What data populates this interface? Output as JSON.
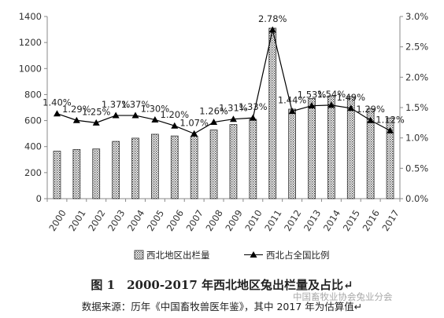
{
  "chart_data": {
    "type": "bar+line",
    "categories": [
      "2000",
      "2001",
      "2002",
      "2003",
      "2004",
      "2005",
      "2006",
      "2007",
      "2008",
      "2009",
      "2010",
      "2011",
      "2012",
      "2013",
      "2014",
      "2015",
      "2016",
      "2017"
    ],
    "series": [
      {
        "name": "西北地区出栏量",
        "kind": "bar",
        "axis": "left",
        "values": [
          365,
          378,
          382,
          440,
          465,
          495,
          482,
          480,
          528,
          570,
          610,
          1310,
          688,
          770,
          790,
          785,
          690,
          620
        ]
      },
      {
        "name": "西北占全国比例",
        "kind": "line",
        "axis": "right",
        "values": [
          1.4,
          1.29,
          1.25,
          1.37,
          1.37,
          1.3,
          1.2,
          1.07,
          1.26,
          1.31,
          1.33,
          2.78,
          1.44,
          1.53,
          1.54,
          1.49,
          1.29,
          1.12
        ],
        "labels": [
          "1.40%",
          "1.29%",
          "1.25%",
          "1.37%",
          "1.37%",
          "1.30%",
          "1.20%",
          "1.07%",
          "1.26%",
          "1.31%",
          "1.33%",
          "2.78%",
          "1.44%",
          "1.53%",
          "1.54%",
          "1.49%",
          "1.29%",
          "1.12%"
        ]
      }
    ],
    "y_left": {
      "ylim": [
        0,
        1400
      ],
      "ticks": [
        "0",
        "200",
        "400",
        "600",
        "800",
        "1000",
        "1200",
        "1400"
      ]
    },
    "y_right": {
      "ylim": [
        0,
        3.0
      ],
      "ticks": [
        "0.0%",
        "0.5%",
        "1.0%",
        "1.5%",
        "2.0%",
        "2.5%",
        "3.0%"
      ]
    },
    "grid": false,
    "legend_position": "bottom",
    "colors": {
      "bar_fill": "#ffffff",
      "bar_pattern": "#333333",
      "line": "#000000",
      "axis": "#888888"
    }
  },
  "caption": {
    "figure": "图 1　2000-2017 年西北地区兔出栏量及占比↵",
    "source": "数据来源：历年《中国畜牧兽医年鉴》，其中 2017 年为估算值↵"
  },
  "watermark": "中国畜牧业协会兔业分会"
}
